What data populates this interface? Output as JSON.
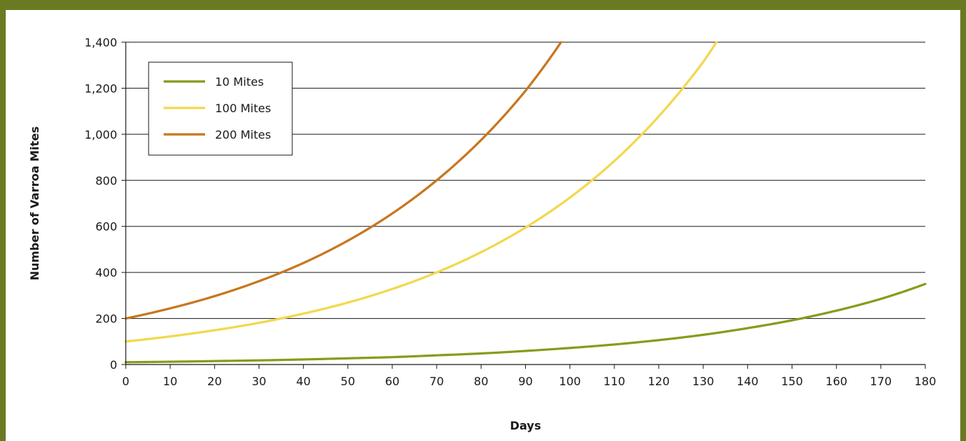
{
  "chart_data": {
    "type": "line",
    "title": "",
    "xlabel": "Days",
    "ylabel": "Number of Varroa Mites",
    "xlim": [
      0,
      180
    ],
    "ylim": [
      0,
      1400
    ],
    "x_ticks": [
      0,
      10,
      20,
      30,
      40,
      50,
      60,
      70,
      80,
      90,
      100,
      110,
      120,
      130,
      140,
      150,
      160,
      170,
      180
    ],
    "y_ticks": [
      0,
      200,
      400,
      600,
      800,
      1000,
      1200,
      1400
    ],
    "y_tick_labels": [
      "0",
      "200",
      "400",
      "600",
      "800",
      "1,000",
      "1,200",
      "1,400"
    ],
    "grid": "horizontal",
    "legend_position": "top-left",
    "series": [
      {
        "name": "10 Mites",
        "color": "#8a9a1b",
        "x": [
          0,
          10,
          20,
          30,
          40,
          50,
          60,
          70,
          80,
          90,
          100,
          110,
          120,
          130,
          140,
          150,
          160,
          170,
          180
        ],
        "y": [
          10,
          12,
          15,
          18,
          22,
          27,
          32,
          40,
          48,
          59,
          72,
          87,
          106,
          129,
          158,
          192,
          234,
          285,
          350
        ]
      },
      {
        "name": "100 Mites",
        "color": "#f2d84e",
        "x": [
          0,
          10,
          20,
          30,
          40,
          50,
          60,
          70,
          80,
          90,
          100,
          110,
          120,
          130,
          133
        ],
        "y": [
          100,
          122,
          149,
          181,
          221,
          269,
          328,
          400,
          488,
          595,
          725,
          884,
          1078,
          1314,
          1400
        ]
      },
      {
        "name": "200 Mites",
        "color": "#c8761e",
        "x": [
          0,
          10,
          20,
          30,
          40,
          50,
          60,
          70,
          80,
          90,
          98
        ],
        "y": [
          200,
          244,
          297,
          362,
          441,
          538,
          656,
          800,
          975,
          1189,
          1400
        ]
      }
    ]
  }
}
